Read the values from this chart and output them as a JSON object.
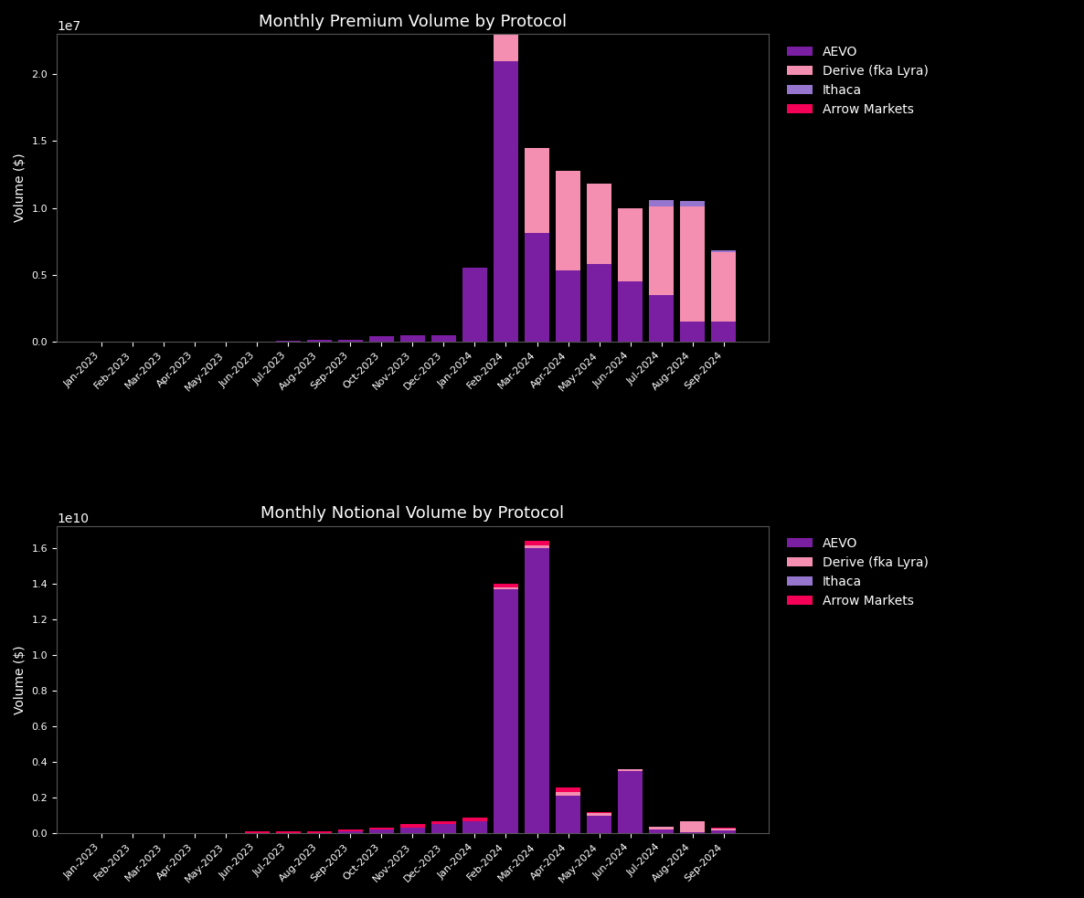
{
  "months": [
    "Jan-2023",
    "Feb-2023",
    "Mar-2023",
    "Apr-2023",
    "May-2023",
    "Jun-2023",
    "Jul-2023",
    "Aug-2023",
    "Sep-2023",
    "Oct-2023",
    "Nov-2023",
    "Dec-2023",
    "Jan-2024",
    "Feb-2024",
    "Mar-2024",
    "Apr-2024",
    "May-2024",
    "Jun-2024",
    "Jul-2024",
    "Aug-2024",
    "Sep-2024"
  ],
  "premium": {
    "AEVO": [
      0,
      0,
      0,
      0,
      0,
      0,
      80000,
      120000,
      120000,
      400000,
      450000,
      450000,
      5500000,
      21000000,
      8100000,
      5300000,
      5800000,
      4500000,
      3500000,
      1500000,
      1500000
    ],
    "Derive": [
      0,
      0,
      0,
      0,
      0,
      0,
      0,
      0,
      0,
      0,
      0,
      0,
      0,
      2000000,
      6400000,
      7500000,
      6000000,
      5500000,
      6600000,
      8600000,
      5200000
    ],
    "Ithaca": [
      0,
      0,
      0,
      0,
      0,
      0,
      0,
      0,
      0,
      0,
      0,
      0,
      0,
      0,
      0,
      0,
      0,
      0,
      500000,
      400000,
      100000
    ],
    "Arrow": [
      0,
      0,
      0,
      0,
      0,
      0,
      0,
      0,
      0,
      0,
      0,
      0,
      0,
      0,
      0,
      0,
      0,
      0,
      0,
      0,
      0
    ]
  },
  "notional": {
    "AEVO": [
      0,
      0,
      0,
      0,
      0,
      0,
      0,
      0,
      100000000,
      200000000,
      300000000,
      500000000,
      700000000,
      13700000000,
      16000000000,
      2100000000,
      1000000000,
      3500000000,
      200000000,
      80000000,
      150000000
    ],
    "Derive": [
      0,
      0,
      0,
      0,
      0,
      0,
      0,
      0,
      0,
      0,
      0,
      0,
      0,
      100000000,
      200000000,
      200000000,
      150000000,
      100000000,
      150000000,
      600000000,
      100000000
    ],
    "Ithaca": [
      0,
      0,
      0,
      0,
      0,
      0,
      0,
      0,
      0,
      0,
      0,
      0,
      0,
      0,
      0,
      0,
      0,
      0,
      0,
      0,
      0
    ],
    "Arrow": [
      0,
      0,
      0,
      0,
      0,
      100000000,
      100000000,
      100000000,
      100000000,
      100000000,
      200000000,
      200000000,
      200000000,
      200000000,
      250000000,
      250000000,
      50000000,
      0,
      0,
      0,
      50000000
    ]
  },
  "colors": {
    "AEVO": "#7b1fa2",
    "Derive": "#f48fb1",
    "Ithaca": "#9575cd",
    "Arrow": "#f50057"
  },
  "title1": "Monthly Premium Volume by Protocol",
  "title2": "Monthly Notional Volume by Protocol",
  "ylabel": "Volume ($)",
  "bg_color": "#000000",
  "text_color": "#ffffff",
  "legend_labels": [
    "AEVO",
    "Derive (fka Lyra)",
    "Ithaca",
    "Arrow Markets"
  ]
}
